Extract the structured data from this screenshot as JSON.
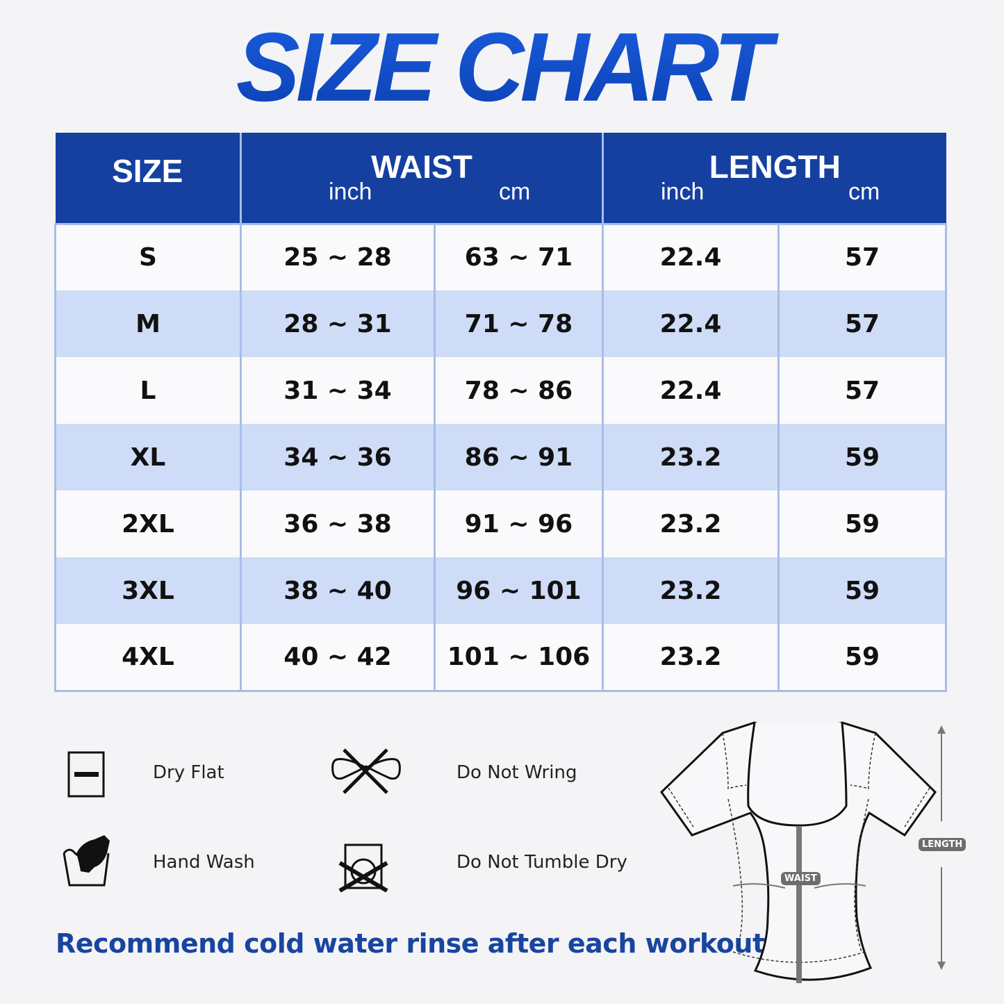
{
  "title": "SIZE CHART",
  "table": {
    "headers": {
      "size": "SIZE",
      "waist": "WAIST",
      "length": "LENGTH",
      "inch": "inch",
      "cm": "cm"
    },
    "rows": [
      {
        "size": "S",
        "waist_in": "25 ~ 28",
        "waist_cm": "63 ~ 71",
        "length_in": "22.4",
        "length_cm": "57"
      },
      {
        "size": "M",
        "waist_in": "28 ~ 31",
        "waist_cm": "71 ~ 78",
        "length_in": "22.4",
        "length_cm": "57"
      },
      {
        "size": "L",
        "waist_in": "31 ~ 34",
        "waist_cm": "78 ~ 86",
        "length_in": "22.4",
        "length_cm": "57"
      },
      {
        "size": "XL",
        "waist_in": "34 ~ 36",
        "waist_cm": "86 ~ 91",
        "length_in": "23.2",
        "length_cm": "59"
      },
      {
        "size": "2XL",
        "waist_in": "36 ~ 38",
        "waist_cm": "91 ~ 96",
        "length_in": "23.2",
        "length_cm": "59"
      },
      {
        "size": "3XL",
        "waist_in": "38 ~ 40",
        "waist_cm": "96 ~ 101",
        "length_in": "23.2",
        "length_cm": "59"
      },
      {
        "size": "4XL",
        "waist_in": "40 ~ 42",
        "waist_cm": "101 ~ 106",
        "length_in": "23.2",
        "length_cm": "59"
      }
    ]
  },
  "care": [
    {
      "label": "Dry Flat",
      "icon": "dry-flat-icon"
    },
    {
      "label": "Do Not Wring",
      "icon": "do-not-wring-icon"
    },
    {
      "label": "Hand Wash",
      "icon": "hand-wash-icon"
    },
    {
      "label": "Do Not Tumble Dry",
      "icon": "do-not-tumble-dry-icon"
    }
  ],
  "recommendation": "Recommend cold water rinse after each workout.",
  "diagram": {
    "waist_label": "WAIST",
    "length_label": "LENGTH"
  },
  "colors": {
    "header": "#1540a0",
    "alt_row": "#cfdcf7",
    "accent_text": "#1845a0"
  }
}
